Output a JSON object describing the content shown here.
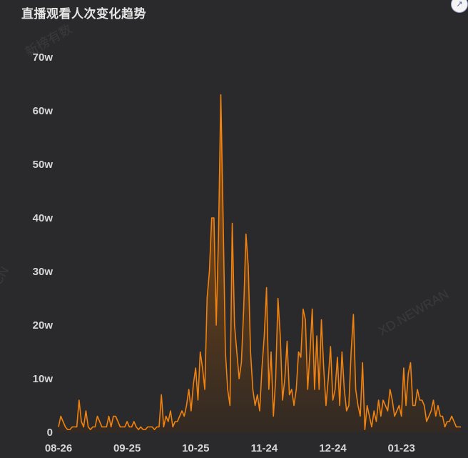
{
  "chart_title": "直播观看人次变化趋势",
  "watermarks": [
    "新榜有数",
    "CN",
    "XD.NEWRAN"
  ],
  "colors": {
    "line": "#f0820f",
    "fill_top": "#c0650c",
    "fill_bottom": "#3a2a1c",
    "axis_text": "#d6d6d6"
  },
  "corner_icon": "link-icon",
  "chart_data": {
    "type": "area",
    "title": "直播观看人次变化趋势",
    "xlabel": "",
    "ylabel": "",
    "ylim": [
      0,
      70
    ],
    "y_unit": "w",
    "y_ticks": [
      {
        "value": 0,
        "label": "0"
      },
      {
        "value": 10,
        "label": "10w"
      },
      {
        "value": 20,
        "label": "20w"
      },
      {
        "value": 30,
        "label": "30w"
      },
      {
        "value": 40,
        "label": "40w"
      },
      {
        "value": 50,
        "label": "50w"
      },
      {
        "value": 60,
        "label": "60w"
      },
      {
        "value": 70,
        "label": "70w"
      }
    ],
    "x_ticks": [
      {
        "index": 0,
        "label": "08-26"
      },
      {
        "index": 30,
        "label": "09-25"
      },
      {
        "index": 60,
        "label": "10-25"
      },
      {
        "index": 90,
        "label": "11-24"
      },
      {
        "index": 120,
        "label": "12-24"
      },
      {
        "index": 150,
        "label": "01-23"
      }
    ],
    "grid": false,
    "series": [
      {
        "values": [
          1,
          3,
          2,
          1,
          0.5,
          0.5,
          1,
          1,
          1,
          6,
          2,
          1,
          4,
          1,
          0.5,
          1,
          1,
          3,
          2,
          1,
          1,
          1,
          3,
          1,
          3,
          3,
          2,
          1,
          1,
          1,
          2,
          1,
          1,
          2,
          1,
          0.5,
          1,
          0.5,
          0.5,
          1,
          1,
          1,
          0.5,
          1,
          1,
          7,
          1,
          3,
          2,
          4,
          1,
          2,
          2,
          3,
          4,
          3,
          5,
          8,
          4,
          9,
          12,
          6,
          15,
          12,
          8,
          25,
          30,
          40,
          40,
          20,
          37,
          63,
          40,
          15,
          8,
          5,
          39,
          20,
          15,
          10,
          13,
          23,
          37,
          31,
          15,
          8,
          5,
          7,
          4,
          12,
          18,
          27,
          8,
          15,
          3,
          10,
          25,
          18,
          6,
          10,
          17,
          7,
          8,
          5,
          8,
          15,
          14,
          23,
          21,
          8,
          15,
          23,
          8,
          18,
          8,
          21,
          12,
          5,
          10,
          16,
          6,
          8,
          14,
          5,
          15,
          8,
          4,
          5,
          15,
          22,
          8,
          5,
          3,
          13,
          0.5,
          5,
          3,
          1,
          4,
          2,
          6,
          3,
          6,
          5,
          4,
          8,
          6,
          3,
          4,
          5,
          3,
          12,
          5,
          11,
          13,
          5,
          5,
          8,
          6,
          6,
          5,
          2,
          3,
          4,
          6,
          3,
          5,
          3,
          3,
          1,
          2,
          2,
          3,
          2,
          1,
          1,
          1
        ]
      }
    ]
  }
}
